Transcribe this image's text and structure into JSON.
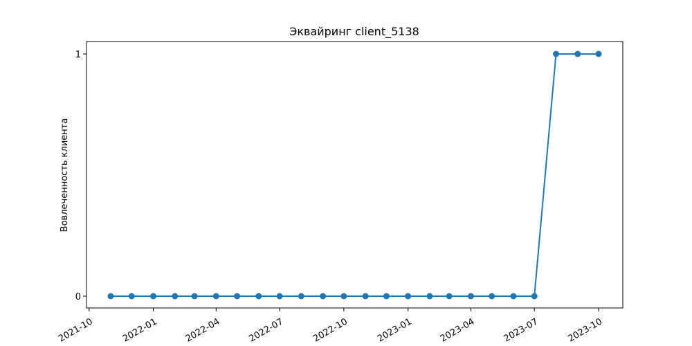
{
  "chart_data": {
    "type": "line",
    "title": "Эквайринг client_5138",
    "xlabel": "",
    "ylabel": "Вовлеченность клиента",
    "x": [
      "2021-11-01",
      "2021-12-01",
      "2022-01-01",
      "2022-02-01",
      "2022-03-01",
      "2022-04-01",
      "2022-05-01",
      "2022-06-01",
      "2022-07-01",
      "2022-08-01",
      "2022-09-01",
      "2022-10-01",
      "2022-11-01",
      "2022-12-01",
      "2023-01-01",
      "2023-02-01",
      "2023-03-01",
      "2023-04-01",
      "2023-05-01",
      "2023-06-01",
      "2023-07-01",
      "2023-08-01",
      "2023-09-01",
      "2023-10-01"
    ],
    "series": [
      {
        "values": [
          0,
          0,
          0,
          0,
          0,
          0,
          0,
          0,
          0,
          0,
          0,
          0,
          0,
          0,
          0,
          0,
          0,
          0,
          0,
          0,
          0,
          1,
          1,
          1
        ],
        "color": "#1f77b4",
        "marker": "circle"
      }
    ],
    "xticks": [
      "2021-10",
      "2022-01",
      "2022-04",
      "2022-07",
      "2022-10",
      "2023-01",
      "2023-04",
      "2023-07",
      "2023-10"
    ],
    "yticks": [
      0,
      1
    ],
    "xlim": [
      "2021-10-01",
      "2023-10-01"
    ],
    "ylim": [
      0,
      1
    ],
    "grid": false,
    "legend": false
  }
}
